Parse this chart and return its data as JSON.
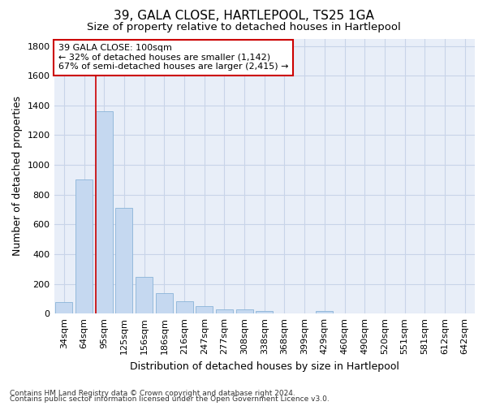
{
  "title": "39, GALA CLOSE, HARTLEPOOL, TS25 1GA",
  "subtitle": "Size of property relative to detached houses in Hartlepool",
  "xlabel": "Distribution of detached houses by size in Hartlepool",
  "ylabel": "Number of detached properties",
  "categories": [
    "34sqm",
    "64sqm",
    "95sqm",
    "125sqm",
    "156sqm",
    "186sqm",
    "216sqm",
    "247sqm",
    "277sqm",
    "308sqm",
    "338sqm",
    "368sqm",
    "399sqm",
    "429sqm",
    "460sqm",
    "490sqm",
    "520sqm",
    "551sqm",
    "581sqm",
    "612sqm",
    "642sqm"
  ],
  "values": [
    80,
    905,
    1360,
    710,
    248,
    140,
    85,
    50,
    30,
    30,
    18,
    0,
    0,
    20,
    0,
    0,
    0,
    0,
    0,
    0,
    0
  ],
  "bar_color": "#c5d8f0",
  "bar_edgecolor": "#8ab4d8",
  "vline_color": "#cc0000",
  "vline_x_index": 2,
  "annotation_text": "39 GALA CLOSE: 100sqm\n← 32% of detached houses are smaller (1,142)\n67% of semi-detached houses are larger (2,415) →",
  "annotation_box_facecolor": "#ffffff",
  "annotation_box_edgecolor": "#cc0000",
  "ylim": [
    0,
    1850
  ],
  "yticks": [
    0,
    200,
    400,
    600,
    800,
    1000,
    1200,
    1400,
    1600,
    1800
  ],
  "footnote1": "Contains HM Land Registry data © Crown copyright and database right 2024.",
  "footnote2": "Contains public sector information licensed under the Open Government Licence v3.0.",
  "background_color": "#ffffff",
  "plot_bg_color": "#e8eef8",
  "grid_color": "#c8d4e8",
  "title_fontsize": 11,
  "subtitle_fontsize": 9.5,
  "tick_fontsize": 8,
  "ylabel_fontsize": 9,
  "xlabel_fontsize": 9,
  "annotation_fontsize": 8,
  "footnote_fontsize": 6.5
}
